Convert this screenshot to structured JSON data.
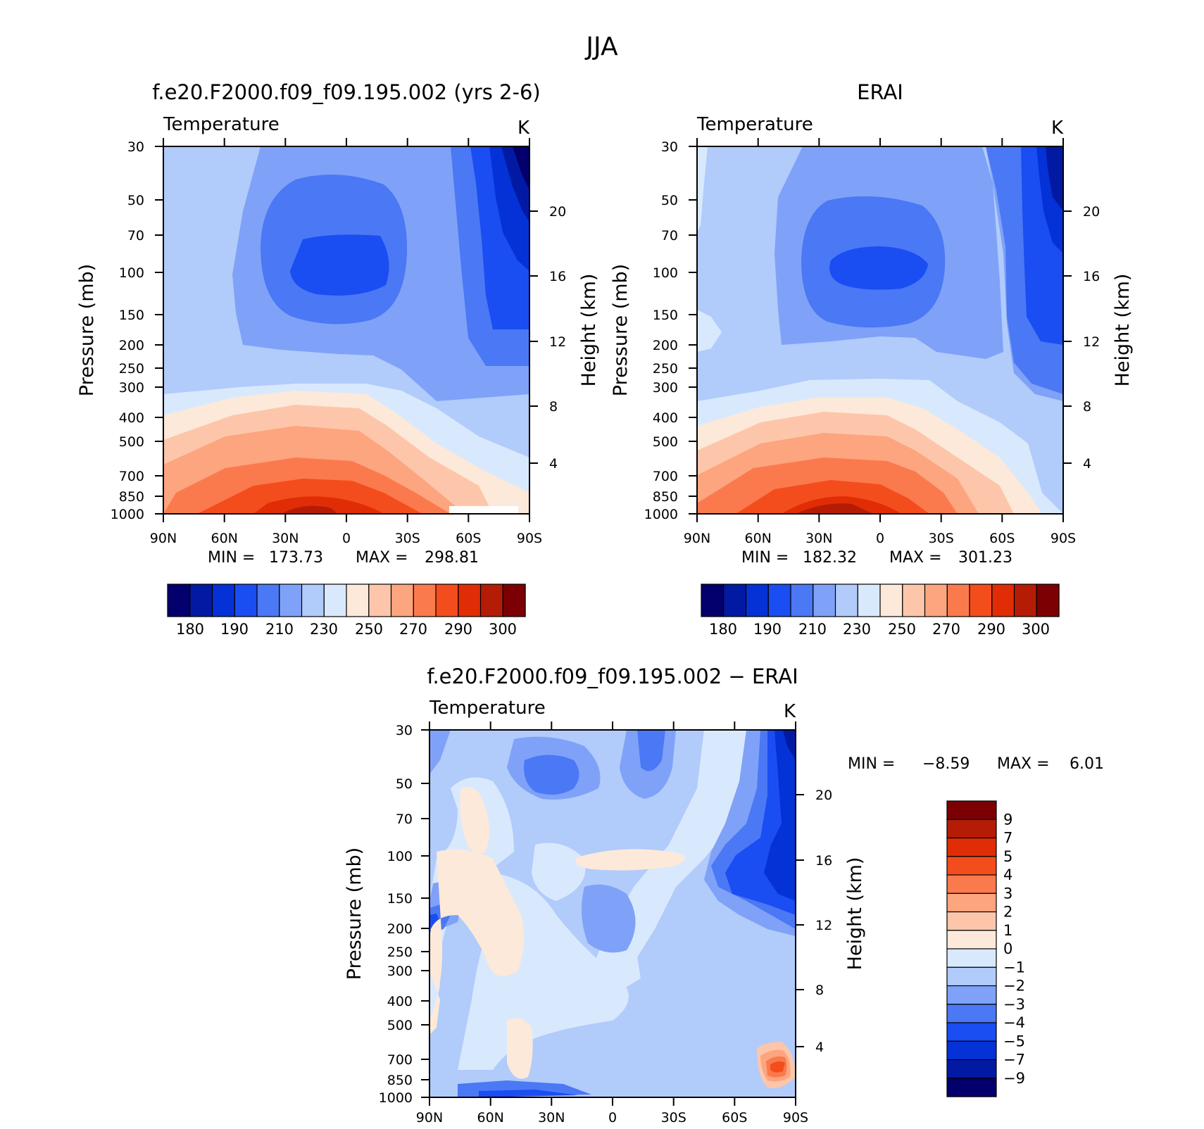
{
  "chart_data": [
    {
      "type": "heatmap",
      "title": "f.e20.F2000.f09_f09.195.002 (yrs 2-6)",
      "subtitle": "Temperature",
      "units": "K",
      "ylabel": "Pressure (mb)",
      "ylabel2": "Height (km)",
      "x_ticks": [
        "90N",
        "60N",
        "30N",
        "0",
        "30S",
        "60S",
        "90S"
      ],
      "y_ticks": [
        "30",
        "50",
        "70",
        "100",
        "150",
        "200",
        "250",
        "300",
        "400",
        "500",
        "700",
        "850",
        "1000"
      ],
      "y2_ticks": [
        "20",
        "16",
        "12",
        "8",
        "4"
      ],
      "y_scale": "log",
      "min_label": "MIN =",
      "min": "173.73",
      "max_label": "MAX =",
      "max": "298.81",
      "levels": [
        180,
        185,
        190,
        200,
        210,
        220,
        230,
        240,
        250,
        260,
        270,
        280,
        290,
        295,
        300
      ],
      "colorbar_labels": [
        "180",
        "190",
        "210",
        "230",
        "250",
        "270",
        "290",
        "300"
      ],
      "colors": [
        "#03006d",
        "#021aa3",
        "#0432d6",
        "#1a4df2",
        "#4b78f4",
        "#7fa2f8",
        "#b1cbfb",
        "#d9e9fd",
        "#fde9d9",
        "#fdc6aa",
        "#fca57f",
        "#fb7a4d",
        "#f44d1d",
        "#e02d06",
        "#b51c05",
        "#7c0003"
      ]
    },
    {
      "type": "heatmap",
      "title": "ERAI",
      "subtitle": "Temperature",
      "units": "K",
      "ylabel": "Pressure (mb)",
      "ylabel2": "Height (km)",
      "x_ticks": [
        "90N",
        "60N",
        "30N",
        "0",
        "30S",
        "60S",
        "90S"
      ],
      "y_ticks": [
        "30",
        "50",
        "70",
        "100",
        "150",
        "200",
        "250",
        "300",
        "400",
        "500",
        "700",
        "850",
        "1000"
      ],
      "y2_ticks": [
        "20",
        "16",
        "12",
        "8",
        "4"
      ],
      "y_scale": "log",
      "min_label": "MIN =",
      "min": "182.32",
      "max_label": "MAX =",
      "max": "301.23",
      "levels": [
        180,
        185,
        190,
        200,
        210,
        220,
        230,
        240,
        250,
        260,
        270,
        280,
        290,
        295,
        300
      ],
      "colorbar_labels": [
        "180",
        "190",
        "210",
        "230",
        "250",
        "270",
        "290",
        "300"
      ],
      "colors": [
        "#03006d",
        "#021aa3",
        "#0432d6",
        "#1a4df2",
        "#4b78f4",
        "#7fa2f8",
        "#b1cbfb",
        "#d9e9fd",
        "#fde9d9",
        "#fdc6aa",
        "#fca57f",
        "#fb7a4d",
        "#f44d1d",
        "#e02d06",
        "#b51c05",
        "#7c0003"
      ]
    },
    {
      "type": "heatmap",
      "title": "f.e20.F2000.f09_f09.195.002 − ERAI",
      "subtitle": "Temperature",
      "units": "K",
      "ylabel": "Pressure (mb)",
      "ylabel2": "Height (km)",
      "x_ticks": [
        "90N",
        "60N",
        "30N",
        "0",
        "30S",
        "60S",
        "90S"
      ],
      "y_ticks": [
        "30",
        "50",
        "70",
        "100",
        "150",
        "200",
        "250",
        "300",
        "400",
        "500",
        "700",
        "850",
        "1000"
      ],
      "y2_ticks": [
        "20",
        "16",
        "12",
        "8",
        "4"
      ],
      "y_scale": "log",
      "min_label": "MIN =",
      "min": "−8.59",
      "max_label": "MAX =",
      "max": "6.01",
      "levels": [
        -9,
        -7,
        -5,
        -4,
        -3,
        -2,
        -1,
        0,
        1,
        2,
        3,
        4,
        5,
        7,
        9
      ],
      "colorbar_labels": [
        "9",
        "7",
        "5",
        "4",
        "3",
        "2",
        "1",
        "0",
        "−1",
        "−2",
        "−3",
        "−4",
        "−5",
        "−7",
        "−9"
      ],
      "colors": [
        "#03006d",
        "#021aa3",
        "#0432d6",
        "#1a4df2",
        "#4b78f4",
        "#7fa2f8",
        "#b1cbfb",
        "#d9e9fd",
        "#fde9d9",
        "#fdc6aa",
        "#fca57f",
        "#fb7a4d",
        "#f44d1d",
        "#e02d06",
        "#b51c05",
        "#7c0003"
      ]
    }
  ],
  "page": {
    "season": "JJA"
  }
}
